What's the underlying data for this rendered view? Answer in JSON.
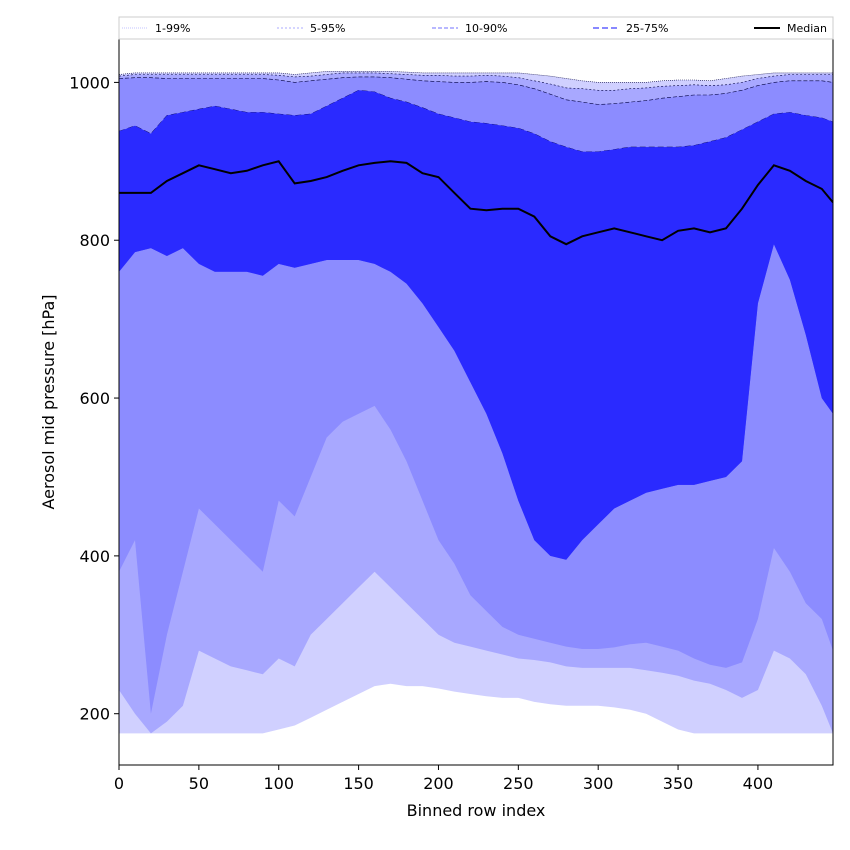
{
  "chart_data": {
    "type": "area",
    "xlabel": "Binned row index",
    "ylabel": "Aerosol mid pressure [hPa]",
    "xlim": [
      0,
      447
    ],
    "ylim": [
      135,
      1055
    ],
    "xticks": [
      0,
      50,
      100,
      150,
      200,
      250,
      300,
      350,
      400
    ],
    "yticks": [
      200,
      400,
      600,
      800,
      1000
    ],
    "grid": false,
    "legend_position": "top, outside plot, single row",
    "x": [
      0,
      10,
      20,
      30,
      40,
      50,
      60,
      70,
      80,
      90,
      100,
      110,
      120,
      130,
      140,
      150,
      160,
      170,
      180,
      190,
      200,
      210,
      220,
      230,
      240,
      250,
      260,
      270,
      280,
      290,
      300,
      310,
      320,
      330,
      340,
      350,
      360,
      370,
      380,
      390,
      400,
      410,
      420,
      430,
      440,
      447
    ],
    "series": [
      {
        "name": "1-99%",
        "color": "#d0d0ff",
        "upper_color": "#d0d0ff",
        "lower": [
          175,
          175,
          175,
          175,
          175,
          175,
          175,
          175,
          175,
          175,
          180,
          185,
          195,
          205,
          215,
          225,
          235,
          238,
          235,
          235,
          232,
          228,
          225,
          222,
          220,
          220,
          215,
          212,
          210,
          210,
          210,
          208,
          205,
          200,
          190,
          180,
          175,
          175,
          175,
          175,
          175,
          175,
          175,
          175,
          175,
          175
        ],
        "upper": [
          1010,
          1012,
          1012,
          1012,
          1012,
          1012,
          1012,
          1012,
          1012,
          1012,
          1012,
          1010,
          1012,
          1014,
          1014,
          1014,
          1014,
          1014,
          1013,
          1012,
          1012,
          1012,
          1012,
          1012,
          1012,
          1012,
          1010,
          1008,
          1005,
          1002,
          1000,
          1000,
          1000,
          1000,
          1002,
          1003,
          1003,
          1002,
          1005,
          1008,
          1010,
          1012,
          1012,
          1012,
          1012,
          1012
        ]
      },
      {
        "name": "5-95%",
        "color": "#a8a8ff",
        "lower": [
          230,
          200,
          175,
          190,
          210,
          280,
          270,
          260,
          255,
          250,
          270,
          260,
          300,
          320,
          340,
          360,
          380,
          360,
          340,
          320,
          300,
          290,
          285,
          280,
          275,
          270,
          268,
          265,
          260,
          258,
          258,
          258,
          258,
          255,
          252,
          248,
          242,
          238,
          230,
          220,
          230,
          280,
          270,
          250,
          210,
          175
        ],
        "upper": [
          1008,
          1010,
          1010,
          1010,
          1010,
          1010,
          1010,
          1010,
          1010,
          1010,
          1009,
          1007,
          1008,
          1010,
          1012,
          1012,
          1012,
          1011,
          1010,
          1009,
          1009,
          1008,
          1008,
          1009,
          1008,
          1006,
          1002,
          998,
          993,
          992,
          990,
          990,
          992,
          993,
          995,
          996,
          997,
          996,
          997,
          1000,
          1005,
          1008,
          1010,
          1010,
          1010,
          1010
        ]
      },
      {
        "name": "10-90%",
        "color": "#8c8cff",
        "lower": [
          380,
          420,
          200,
          300,
          380,
          460,
          440,
          420,
          400,
          380,
          470,
          450,
          500,
          550,
          570,
          580,
          590,
          560,
          520,
          470,
          420,
          390,
          350,
          330,
          310,
          300,
          295,
          290,
          285,
          282,
          282,
          284,
          288,
          290,
          285,
          280,
          270,
          262,
          258,
          265,
          320,
          410,
          380,
          340,
          320,
          280
        ],
        "upper": [
          1005,
          1006,
          1006,
          1005,
          1005,
          1005,
          1005,
          1005,
          1005,
          1005,
          1003,
          1000,
          1002,
          1004,
          1006,
          1007,
          1007,
          1006,
          1004,
          1002,
          1001,
          1000,
          1000,
          1001,
          1000,
          997,
          992,
          985,
          978,
          975,
          972,
          973,
          975,
          977,
          980,
          982,
          984,
          984,
          986,
          990,
          996,
          1000,
          1002,
          1002,
          1002,
          1000
        ]
      },
      {
        "name": "25-75%",
        "color": "#5050ff",
        "lower": [
          760,
          785,
          790,
          780,
          790,
          770,
          760,
          760,
          760,
          755,
          770,
          765,
          770,
          775,
          775,
          775,
          770,
          760,
          745,
          720,
          690,
          660,
          620,
          580,
          530,
          470,
          420,
          400,
          395,
          420,
          440,
          460,
          470,
          480,
          485,
          490,
          490,
          495,
          500,
          520,
          720,
          795,
          750,
          680,
          600,
          580
        ],
        "upper": [
          938,
          945,
          935,
          958,
          962,
          966,
          970,
          966,
          962,
          962,
          960,
          958,
          960,
          970,
          980,
          990,
          988,
          980,
          975,
          968,
          960,
          955,
          950,
          948,
          945,
          942,
          935,
          925,
          918,
          912,
          912,
          915,
          918,
          918,
          918,
          918,
          920,
          925,
          930,
          940,
          950,
          960,
          962,
          958,
          955,
          950
        ]
      },
      {
        "name": "Median",
        "color": "#2a2aff",
        "values": [
          860,
          860,
          860,
          875,
          885,
          895,
          890,
          885,
          888,
          895,
          900,
          872,
          875,
          880,
          888,
          895,
          898,
          900,
          898,
          885,
          880,
          860,
          840,
          838,
          840,
          840,
          830,
          805,
          795,
          805,
          810,
          815,
          810,
          805,
          800,
          812,
          815,
          810,
          815,
          840,
          870,
          895,
          888,
          875,
          865,
          848
        ]
      }
    ],
    "legend": [
      "1-99%",
      "5-95%",
      "10-90%",
      "25-75%",
      "Median"
    ]
  }
}
